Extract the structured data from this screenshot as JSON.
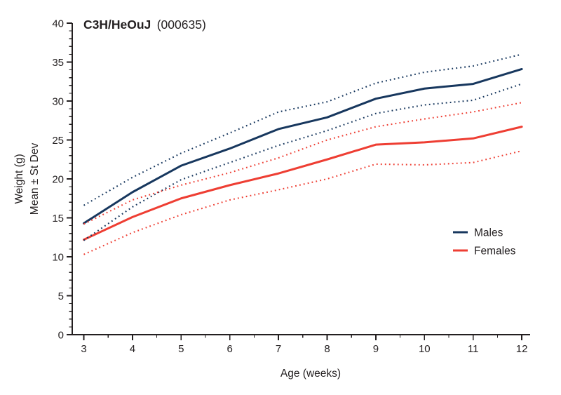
{
  "page": {
    "background": "#ffffff",
    "ink_color": "#231f20"
  },
  "title": {
    "strain": "C3H/HeOuJ",
    "stock_number": "(000635)"
  },
  "axes": {
    "y": {
      "label_line1": "Weight (g)",
      "label_line2": "Mean ± St Dev",
      "min": 0,
      "max": 40,
      "major_tick_step": 5,
      "minor_tick_step": 1,
      "tick_labels": [
        "0",
        "5",
        "10",
        "15",
        "20",
        "25",
        "30",
        "35",
        "40"
      ]
    },
    "x": {
      "label": "Age (weeks)",
      "min": 3,
      "max": 12,
      "major_tick_step": 1,
      "minor_tick_step": 0.5,
      "tick_labels": [
        "3",
        "4",
        "5",
        "6",
        "7",
        "8",
        "9",
        "10",
        "11",
        "12"
      ]
    }
  },
  "legend": {
    "items": [
      {
        "label": "Males",
        "color": "#17375e"
      },
      {
        "label": "Females",
        "color": "#ee3e33"
      }
    ]
  },
  "colors": {
    "males": "#17375e",
    "females": "#ee3e33",
    "ink": "#231f20"
  },
  "chart_data": {
    "type": "line",
    "title": "C3H/HeOuJ (000635)",
    "xlabel": "Age (weeks)",
    "ylabel": "Weight (g), Mean ± St Dev",
    "x": [
      3,
      4,
      5,
      6,
      7,
      8,
      9,
      10,
      11,
      12
    ],
    "xlim": [
      3,
      12
    ],
    "ylim": [
      0,
      40
    ],
    "grid": false,
    "legend_position": "right-middle",
    "series": [
      {
        "name": "Males mean",
        "color": "#17375e",
        "style": "solid",
        "values": [
          14.3,
          18.3,
          21.7,
          23.9,
          26.4,
          27.9,
          30.3,
          31.6,
          32.2,
          34.1
        ]
      },
      {
        "name": "Males mean plus StDev",
        "color": "#17375e",
        "style": "dotted",
        "values": [
          16.6,
          20.2,
          23.3,
          25.9,
          28.6,
          29.9,
          32.3,
          33.7,
          34.5,
          36.0
        ]
      },
      {
        "name": "Males mean minus StDev",
        "color": "#17375e",
        "style": "dotted",
        "values": [
          12.1,
          16.4,
          19.9,
          22.1,
          24.3,
          26.2,
          28.4,
          29.5,
          30.1,
          32.2
        ]
      },
      {
        "name": "Females mean",
        "color": "#ee3e33",
        "style": "solid",
        "values": [
          12.2,
          15.1,
          17.5,
          19.2,
          20.7,
          22.5,
          24.4,
          24.7,
          25.2,
          26.7
        ]
      },
      {
        "name": "Females mean plus StDev",
        "color": "#ee3e33",
        "style": "dotted",
        "values": [
          14.2,
          17.3,
          19.2,
          20.8,
          22.7,
          25.0,
          26.7,
          27.7,
          28.6,
          29.8
        ]
      },
      {
        "name": "Females mean minus StDev",
        "color": "#ee3e33",
        "style": "dotted",
        "values": [
          10.3,
          13.1,
          15.4,
          17.3,
          18.6,
          20.0,
          21.9,
          21.8,
          22.1,
          23.6
        ]
      }
    ]
  }
}
